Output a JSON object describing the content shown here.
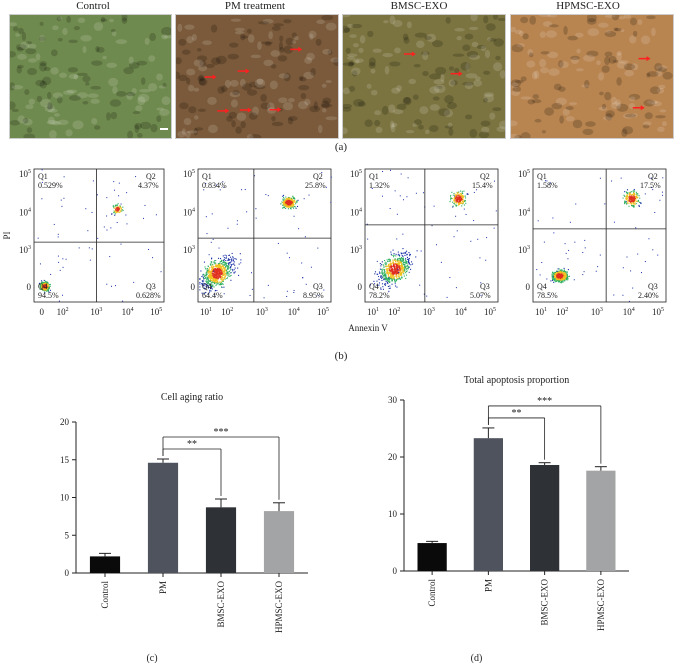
{
  "panel_a": {
    "titles": [
      "Control",
      "PM treatment",
      "BMSC-EXO",
      "HPMSC-EXO"
    ],
    "colors": [
      "#6f8a4e",
      "#7a5a3a",
      "#7c7440",
      "#b88450"
    ],
    "label": "(a)"
  },
  "panel_b": {
    "label": "(b)",
    "xlabel": "Annexin V",
    "ylabel": "PI",
    "y_ticks": [
      "10^5",
      "10^4",
      "10^3",
      "0"
    ],
    "x_ticks_first": [
      "0",
      "10^2",
      "10^3",
      "10^4",
      "10^5"
    ],
    "x_ticks_other": [
      "10^1",
      "10^2",
      "10^3",
      "10^4",
      "10^5"
    ],
    "plots": [
      {
        "q1": "0.529%",
        "q2": "4.37%",
        "q3": "0.628%",
        "q4": "94.5%"
      },
      {
        "q1": "0.834%",
        "q2": "25.8%",
        "q3": "8.95%",
        "q4": "64.4%"
      },
      {
        "q1": "1.32%",
        "q2": "15.4%",
        "q3": "5.07%",
        "q4": "78.2%"
      },
      {
        "q1": "1.58%",
        "q2": "17.5%",
        "q3": "2.40%",
        "q4": "78.5%"
      }
    ]
  },
  "chart_data": [
    {
      "type": "bar",
      "label": "(c)",
      "title": "Cell aging ratio",
      "categories": [
        "Control",
        "PM",
        "BMSC-EXO",
        "HPMSC-EXO"
      ],
      "values": [
        2.2,
        14.6,
        8.7,
        8.2
      ],
      "errors": [
        0.4,
        0.5,
        1.1,
        1.1
      ],
      "ylim": [
        0,
        20
      ],
      "yticks": [
        0,
        5,
        10,
        15,
        20
      ],
      "colors": [
        "#0a0a0a",
        "#4f535e",
        "#2e3136",
        "#a3a4a6"
      ],
      "significance": [
        "**",
        "***"
      ]
    },
    {
      "type": "bar",
      "label": "(d)",
      "title": "Total apoptosis proportion",
      "categories": [
        "Control",
        "PM",
        "BMSC-EXO",
        "HPMSC-EXO"
      ],
      "values": [
        4.9,
        23.3,
        18.6,
        17.6
      ],
      "errors": [
        0.3,
        1.8,
        0.4,
        0.7
      ],
      "ylim": [
        0,
        30
      ],
      "yticks": [
        0,
        10,
        20,
        30
      ],
      "colors": [
        "#0a0a0a",
        "#4f535e",
        "#2e3136",
        "#a3a4a6"
      ],
      "significance": [
        "**",
        "***"
      ]
    }
  ]
}
